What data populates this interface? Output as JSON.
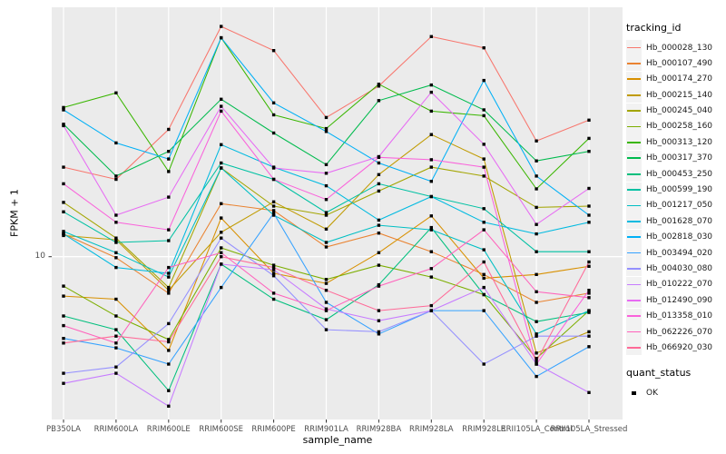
{
  "figure": {
    "y_axis": {
      "title": "FPKM + 1",
      "tick_label": "10"
    },
    "x_axis": {
      "title": "sample_name"
    },
    "legend": {
      "tracking_title": "tracking_id",
      "quant_title": "quant_status",
      "quant_items": [
        {
          "label": "OK"
        }
      ]
    },
    "colors": {
      "panel_bg": "#EBEBEB",
      "grid": "#FFFFFF",
      "tick_text": "#4D4D4D",
      "tick_mark": "#333333",
      "marker": "#000000",
      "legend_key_bg": "#F2F2F2"
    }
  },
  "chart_data": {
    "type": "line",
    "title": "",
    "xlabel": "sample_name",
    "ylabel": "FPKM + 1",
    "y_scale": "log10",
    "y_tick_labels": [
      "10"
    ],
    "legend_position": "right",
    "marker": "black-square",
    "grid": "white-on-gray-panel",
    "categories": [
      "PB350LA",
      "RRIM600LA",
      "RRIM600LE",
      "RRIM600SE",
      "RRIM600PE",
      "RRIM901LA",
      "RRIM928BA",
      "RRIM928LA",
      "RRIM928LE",
      "RRII105LA_Control",
      "RRII105LA_Stressed"
    ],
    "series": [
      {
        "name": "Hb_000028_130",
        "color": "#F8766D",
        "values": [
          24,
          21.3,
          34.7,
          95,
          75,
          39,
          53,
          86,
          77,
          31,
          38
        ]
      },
      {
        "name": "Hb_000107_490",
        "color": "#EA8331",
        "values": [
          12.5,
          9.9,
          7.0,
          16.8,
          15.7,
          11.0,
          12.6,
          10.5,
          8.4,
          6.4,
          7.0
        ]
      },
      {
        "name": "Hb_000174_270",
        "color": "#D89000",
        "values": [
          6.8,
          6.6,
          4.0,
          14.6,
          8.5,
          7.7,
          10.4,
          14.9,
          8.1,
          8.4,
          9.1
        ]
      },
      {
        "name": "Hb_000215_140",
        "color": "#C09B00",
        "values": [
          12.3,
          11.8,
          7.2,
          12.7,
          17.1,
          13.1,
          22.3,
          33,
          26,
          3.9,
          4.8
        ]
      },
      {
        "name": "Hb_000245_040",
        "color": "#A3A500",
        "values": [
          17,
          12.0,
          7.4,
          23.8,
          16.4,
          15.0,
          19,
          24,
          22,
          16.2,
          16.4
        ]
      },
      {
        "name": "Hb_000258_160",
        "color": "#7CAE00",
        "values": [
          7.5,
          5.6,
          4.45,
          10.9,
          9.2,
          8.0,
          9.2,
          8.2,
          6.9,
          3.7,
          5.9
        ]
      },
      {
        "name": "Hb_000313_120",
        "color": "#39B600",
        "values": [
          43,
          49.6,
          23,
          85,
          40,
          35,
          54,
          41.5,
          39.7,
          19.4,
          31.8
        ]
      },
      {
        "name": "Hb_000317_370",
        "color": "#00BB4E",
        "values": [
          36.5,
          22,
          28,
          46.6,
          33.5,
          24.6,
          46,
          53.6,
          42,
          25.5,
          28
        ]
      },
      {
        "name": "Hb_000453_250",
        "color": "#00BF7D",
        "values": [
          5.6,
          4.9,
          2.7,
          9.3,
          6.6,
          5.4,
          7.6,
          13.3,
          6.9,
          5.3,
          5.8
        ]
      },
      {
        "name": "Hb_000599_190",
        "color": "#00C1A3",
        "values": [
          15.5,
          11.5,
          11.7,
          25,
          21.3,
          15.4,
          20.4,
          18,
          16,
          10.5,
          10.5
        ]
      },
      {
        "name": "Hb_001217_050",
        "color": "#00BFC4",
        "values": [
          12.8,
          10.4,
          8.2,
          23.8,
          15.0,
          11.5,
          13.6,
          13,
          10.7,
          4.7,
          5.9
        ]
      },
      {
        "name": "Hb_001628_070",
        "color": "#00BAE0",
        "values": [
          12.5,
          9.0,
          8.5,
          29.9,
          24,
          20,
          14.3,
          18,
          14,
          12.5,
          14
        ]
      },
      {
        "name": "Hb_002818_030",
        "color": "#00B0F6",
        "values": [
          42,
          30.4,
          26,
          85,
          45,
          34,
          25,
          20.9,
          56,
          22,
          15
        ]
      },
      {
        "name": "Hb_003494_020",
        "color": "#35A2FF",
        "values": [
          4.5,
          4.1,
          3.5,
          7.4,
          15.3,
          6.4,
          4.7,
          5.9,
          5.9,
          3.1,
          4.15
        ]
      },
      {
        "name": "Hb_004030_080",
        "color": "#9590FF",
        "values": [
          3.2,
          3.4,
          5.2,
          12.0,
          8.3,
          4.9,
          4.8,
          5.9,
          3.5,
          4.6,
          4.6
        ]
      },
      {
        "name": "Hb_010222_070",
        "color": "#C77CFF",
        "values": [
          2.9,
          3.2,
          2.32,
          9.3,
          8.8,
          6.0,
          5.35,
          5.9,
          7.4,
          3.5,
          2.65
        ]
      },
      {
        "name": "Hb_012490_090",
        "color": "#E76BF3",
        "values": [
          36,
          15.0,
          17.9,
          43.5,
          23.8,
          22.6,
          26.6,
          49.9,
          30,
          13.7,
          19.5
        ]
      },
      {
        "name": "Hb_013358_010",
        "color": "#FA62DB",
        "values": [
          20.4,
          14.0,
          13,
          41.5,
          21.3,
          17.5,
          26.4,
          25.8,
          24,
          3.5,
          7.2
        ]
      },
      {
        "name": "Hb_062226_070",
        "color": "#FF62BC",
        "values": [
          5.1,
          4.3,
          9.0,
          10.4,
          7.0,
          5.9,
          7.5,
          8.9,
          13,
          7.1,
          6.7
        ]
      },
      {
        "name": "Hb_066920_030",
        "color": "#FF6A98",
        "values": [
          4.3,
          4.6,
          4.35,
          10.0,
          9.0,
          7.2,
          5.9,
          6.2,
          9.5,
          3.6,
          9.5
        ]
      }
    ]
  }
}
